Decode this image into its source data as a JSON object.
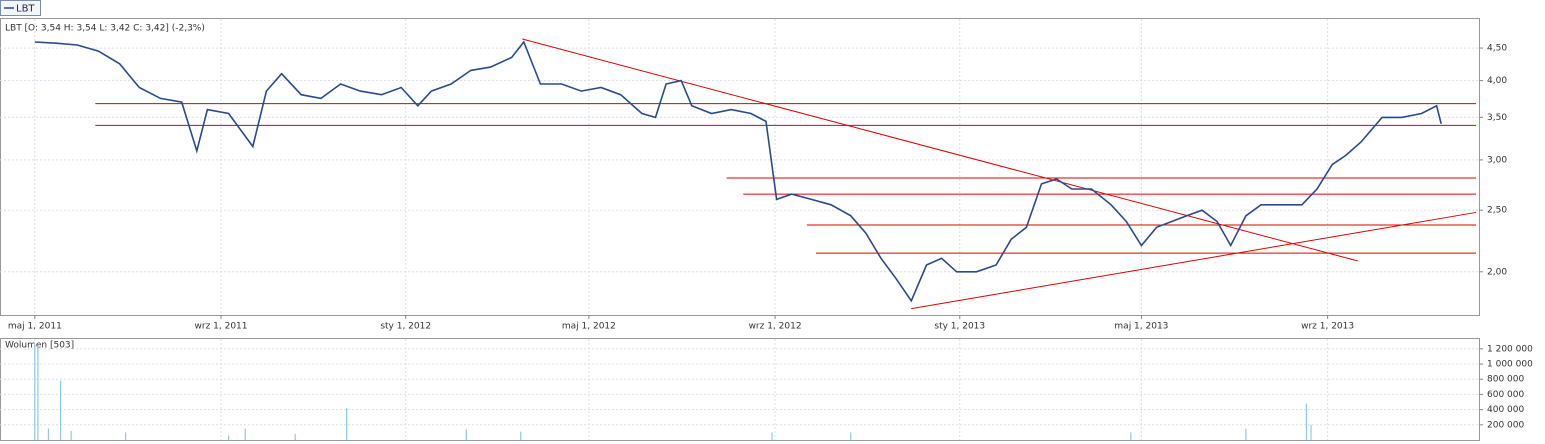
{
  "ui": {
    "button": "LBT"
  },
  "chart_data": [
    {
      "type": "line",
      "title": "LBT [O: 3,54  H: 3,54  L: 3,42  C: 3,42] (-2,3%)",
      "log_scale": true,
      "grid": true,
      "xlim": [
        "2011-04-08",
        "2013-12-10"
      ],
      "xticks": [
        {
          "value": "2011-05-01",
          "label": "maj 1, 2011"
        },
        {
          "value": "2011-09-01",
          "label": "wrz 1, 2011"
        },
        {
          "value": "2012-01-01",
          "label": "sty 1, 2012"
        },
        {
          "value": "2012-05-01",
          "label": "maj 1, 2012"
        },
        {
          "value": "2012-09-01",
          "label": "wrz 1, 2012"
        },
        {
          "value": "2013-01-01",
          "label": "sty 1, 2013"
        },
        {
          "value": "2013-05-01",
          "label": "maj 1, 2013"
        },
        {
          "value": "2013-09-01",
          "label": "wrz 1, 2013"
        }
      ],
      "ylim": [
        1.71,
        5.0
      ],
      "yticks": [
        {
          "value": 2,
          "label": "2,00"
        },
        {
          "value": 2.5,
          "label": "2,50"
        },
        {
          "value": 3,
          "label": "3,00"
        },
        {
          "value": 3.5,
          "label": "3,50"
        },
        {
          "value": 4,
          "label": "4,00"
        },
        {
          "value": 4.5,
          "label": "4,50"
        }
      ],
      "x": [
        "2011-05-01",
        "2011-05-15",
        "2011-05-29",
        "2011-06-12",
        "2011-06-26",
        "2011-07-09",
        "2011-07-23",
        "2011-08-06",
        "2011-08-16",
        "2011-08-23",
        "2011-09-06",
        "2011-09-22",
        "2011-10-01",
        "2011-10-11",
        "2011-10-24",
        "2011-11-06",
        "2011-11-19",
        "2011-12-02",
        "2011-12-16",
        "2011-12-29",
        "2012-01-09",
        "2012-01-18",
        "2012-01-31",
        "2012-02-13",
        "2012-02-26",
        "2012-03-11",
        "2012-03-19",
        "2012-03-30",
        "2012-04-13",
        "2012-04-26",
        "2012-05-09",
        "2012-05-22",
        "2012-06-05",
        "2012-06-14",
        "2012-06-21",
        "2012-07-01",
        "2012-07-08",
        "2012-07-21",
        "2012-08-03",
        "2012-08-16",
        "2012-08-26",
        "2012-09-02",
        "2012-09-12",
        "2012-09-25",
        "2012-10-08",
        "2012-10-21",
        "2012-10-31",
        "2012-11-10",
        "2012-11-20",
        "2012-11-30",
        "2012-12-10",
        "2012-12-20",
        "2012-12-30",
        "2013-01-12",
        "2013-01-25",
        "2013-02-04",
        "2013-02-14",
        "2013-02-24",
        "2013-03-06",
        "2013-03-16",
        "2013-03-29",
        "2013-04-11",
        "2013-04-21",
        "2013-05-01",
        "2013-05-11",
        "2013-05-21",
        "2013-05-31",
        "2013-06-10",
        "2013-06-20",
        "2013-06-29",
        "2013-07-09",
        "2013-07-19",
        "2013-08-02",
        "2013-08-15",
        "2013-08-25",
        "2013-09-04",
        "2013-09-13",
        "2013-09-23",
        "2013-10-07",
        "2013-10-20",
        "2013-11-02",
        "2013-11-12",
        "2013-11-15"
      ],
      "series": [
        {
          "name": "LBT",
          "color": "#2b4a8b",
          "values": [
            4.6,
            4.58,
            4.55,
            4.45,
            4.25,
            3.9,
            3.75,
            3.7,
            3.1,
            3.6,
            3.55,
            3.15,
            3.85,
            4.1,
            3.8,
            3.75,
            3.95,
            3.85,
            3.8,
            3.9,
            3.65,
            3.85,
            3.95,
            4.15,
            4.2,
            4.35,
            4.6,
            3.95,
            3.95,
            3.85,
            3.9,
            3.8,
            3.55,
            3.5,
            3.95,
            4.0,
            3.65,
            3.55,
            3.6,
            3.55,
            3.45,
            2.6,
            2.65,
            2.6,
            2.55,
            2.45,
            2.3,
            2.1,
            1.95,
            1.8,
            2.05,
            2.1,
            2.0,
            2.0,
            2.05,
            2.25,
            2.35,
            2.75,
            2.8,
            2.7,
            2.7,
            2.55,
            2.4,
            2.2,
            2.35,
            2.4,
            2.45,
            2.5,
            2.4,
            2.2,
            2.45,
            2.55,
            2.55,
            2.55,
            2.7,
            2.95,
            3.05,
            3.2,
            3.5,
            3.5,
            3.55,
            3.65,
            3.42
          ]
        }
      ],
      "trendlines": {
        "color": "#e00000",
        "lines": [
          {
            "x": [
              "2011-06-10",
              "2013-12-08"
            ],
            "y": [
              3.68,
              3.68
            ]
          },
          {
            "x": [
              "2011-06-10",
              "2013-12-08"
            ],
            "y": [
              3.4,
              3.4
            ]
          },
          {
            "x": [
              "2012-07-31",
              "2013-12-08"
            ],
            "y": [
              2.81,
              2.81
            ]
          },
          {
            "x": [
              "2012-08-11",
              "2013-12-08"
            ],
            "y": [
              2.65,
              2.65
            ]
          },
          {
            "x": [
              "2012-09-22",
              "2013-12-08"
            ],
            "y": [
              2.37,
              2.37
            ]
          },
          {
            "x": [
              "2012-09-28",
              "2013-12-08"
            ],
            "y": [
              2.14,
              2.14
            ]
          },
          {
            "x": [
              "2012-03-18",
              "2013-09-21"
            ],
            "y": [
              4.65,
              2.08
            ]
          },
          {
            "x": [
              "2012-11-30",
              "2013-12-08"
            ],
            "y": [
              1.75,
              2.48
            ]
          }
        ]
      }
    },
    {
      "type": "bar",
      "title": "Wolumen [503]",
      "grid": true,
      "color": "#8fc8e8",
      "xlim": [
        "2011-04-08",
        "2013-12-10"
      ],
      "ylim": [
        0,
        1330000
      ],
      "yticks": [
        {
          "value": 200000,
          "label": "200 000"
        },
        {
          "value": 400000,
          "label": "400 000"
        },
        {
          "value": 600000,
          "label": "600 000"
        },
        {
          "value": 800000,
          "label": "800 000"
        },
        {
          "value": 1000000,
          "label": "1 000 000"
        },
        {
          "value": 1200000,
          "label": "1 200 000"
        }
      ],
      "x": [
        "2011-05-01",
        "2011-05-03",
        "2011-05-10",
        "2011-05-18",
        "2011-05-25",
        "2011-06-30",
        "2011-09-06",
        "2011-09-17",
        "2011-10-20",
        "2011-11-23",
        "2012-02-10",
        "2012-03-17",
        "2012-08-30",
        "2012-10-21",
        "2013-04-24",
        "2013-07-09",
        "2013-08-18",
        "2013-08-21"
      ],
      "values": [
        1250000,
        1250000,
        150000,
        780000,
        120000,
        100000,
        60000,
        150000,
        80000,
        420000,
        140000,
        110000,
        100000,
        100000,
        100000,
        150000,
        480000,
        200000
      ]
    }
  ]
}
